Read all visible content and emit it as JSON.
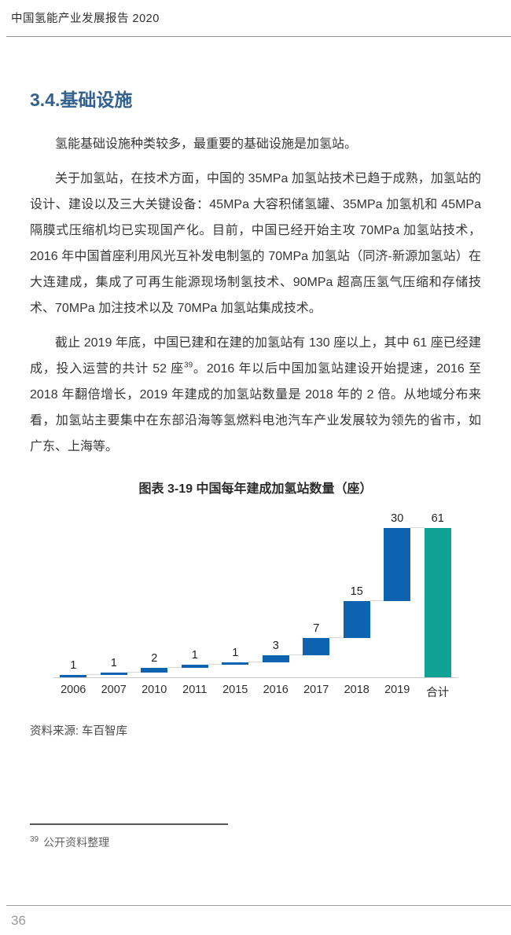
{
  "header": {
    "title": "中国氢能产业发展报告 2020"
  },
  "section": {
    "title": "3.4.基础设施"
  },
  "paragraphs": {
    "p1": "氢能基础设施种类较多，最重要的基础设施是加氢站。",
    "p2": "关于加氢站，在技术方面，中国的 35MPa 加氢站技术已趋于成熟，加氢站的设计、建设以及三大关键设备：45MPa 大容积储氢罐、35MPa 加氢机和 45MPa 隔膜式压缩机均已实现国产化。目前，中国已经开始主攻 70MPa 加氢站技术，2016 年中国首座利用风光互补发电制氢的 70MPa 加氢站（同济-新源加氢站）在大连建成，集成了可再生能源现场制氢技术、90MPa 超高压氢气压缩和存储技术、70MPa 加注技术以及 70MPa 加氢站集成技术。",
    "p3_pre": "截止 2019 年底，中国已建和在建的加氢站有 130 座以上，其中 61 座已经建成，投入运营的共计 52 座",
    "p3_sup": "39",
    "p3_post": "。2016 年以后中国加氢站建设开始提速，2016 至 2018 年翻倍增长，2019 年建成的加氢站数量是 2018 年的 2 倍。从地域分布来看，加氢站主要集中在东部沿海等氢燃料电池汽车产业发展较为领先的省市，如广东、上海等。"
  },
  "chart_data": {
    "type": "bar",
    "subtype": "waterfall",
    "title": "图表 3-19 中国每年建成加氢站数量（座）",
    "categories": [
      "2006",
      "2007",
      "2010",
      "2011",
      "2015",
      "2016",
      "2017",
      "2018",
      "2019",
      "合计"
    ],
    "values": [
      1,
      1,
      2,
      1,
      1,
      3,
      7,
      15,
      30,
      61
    ],
    "cumulative_starts": [
      0,
      1,
      2,
      4,
      5,
      6,
      9,
      16,
      31,
      0
    ],
    "total_category": "合计",
    "bar_color": "#0e63b1",
    "total_color": "#10a195",
    "connector_color": "#d8d8d8",
    "ylim": [
      0,
      61
    ],
    "grid": false,
    "legend": false,
    "source": "资料来源: 车百智库"
  },
  "footnote": {
    "marker": "39",
    "text": "公开资料整理"
  },
  "page": {
    "number": "36"
  },
  "colors": {
    "section_title": "#33618f",
    "bar_blue": "#0e63b1",
    "total_teal": "#10a195"
  }
}
